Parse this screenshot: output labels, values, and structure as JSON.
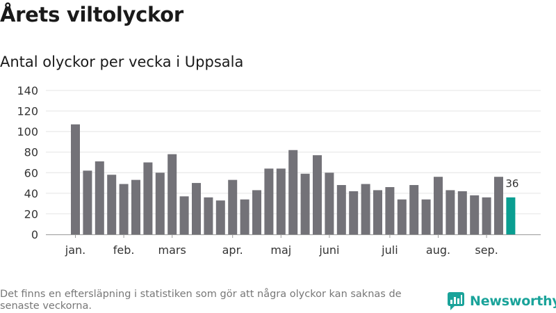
{
  "header": {
    "title": "Årets viltolyckor",
    "subtitle": "Antal olyckor per vecka i Uppsala"
  },
  "footer": {
    "note": "Det finns en eftersläpning i statistiken som gör att några olyckor kan saknas de senaste veckorna.",
    "brand": "Newsworthy"
  },
  "colors": {
    "bar": "#737278",
    "highlight": "#0a9e91",
    "grid": "#e4e4e4",
    "axis": "#999999",
    "brand": "#1aa39a"
  },
  "chart_data": {
    "type": "bar",
    "title": "Antal olyckor per vecka i Uppsala",
    "xlabel": "",
    "ylabel": "",
    "ylim": [
      0,
      140
    ],
    "yticks": [
      0,
      20,
      40,
      60,
      80,
      100,
      120,
      140
    ],
    "grid": true,
    "month_labels": [
      {
        "label": "jan.",
        "week": 1
      },
      {
        "label": "feb.",
        "week": 5
      },
      {
        "label": "mars",
        "week": 9
      },
      {
        "label": "apr.",
        "week": 14
      },
      {
        "label": "maj",
        "week": 18
      },
      {
        "label": "juni",
        "week": 22
      },
      {
        "label": "juli",
        "week": 27
      },
      {
        "label": "aug.",
        "week": 31
      },
      {
        "label": "sep.",
        "week": 35
      }
    ],
    "weeks": [
      1,
      2,
      3,
      4,
      5,
      6,
      7,
      8,
      9,
      10,
      11,
      12,
      13,
      14,
      15,
      16,
      17,
      18,
      19,
      20,
      21,
      22,
      23,
      24,
      25,
      26,
      27,
      28,
      29,
      30,
      31,
      32,
      33,
      34,
      35,
      36,
      37
    ],
    "values": [
      107,
      62,
      71,
      58,
      49,
      53,
      70,
      60,
      78,
      37,
      50,
      36,
      33,
      53,
      34,
      43,
      64,
      64,
      82,
      59,
      77,
      60,
      48,
      42,
      49,
      43,
      46,
      34,
      48,
      34,
      56,
      43,
      42,
      38,
      36,
      56,
      36
    ],
    "highlight_index": 36,
    "highlight_label": "36"
  }
}
